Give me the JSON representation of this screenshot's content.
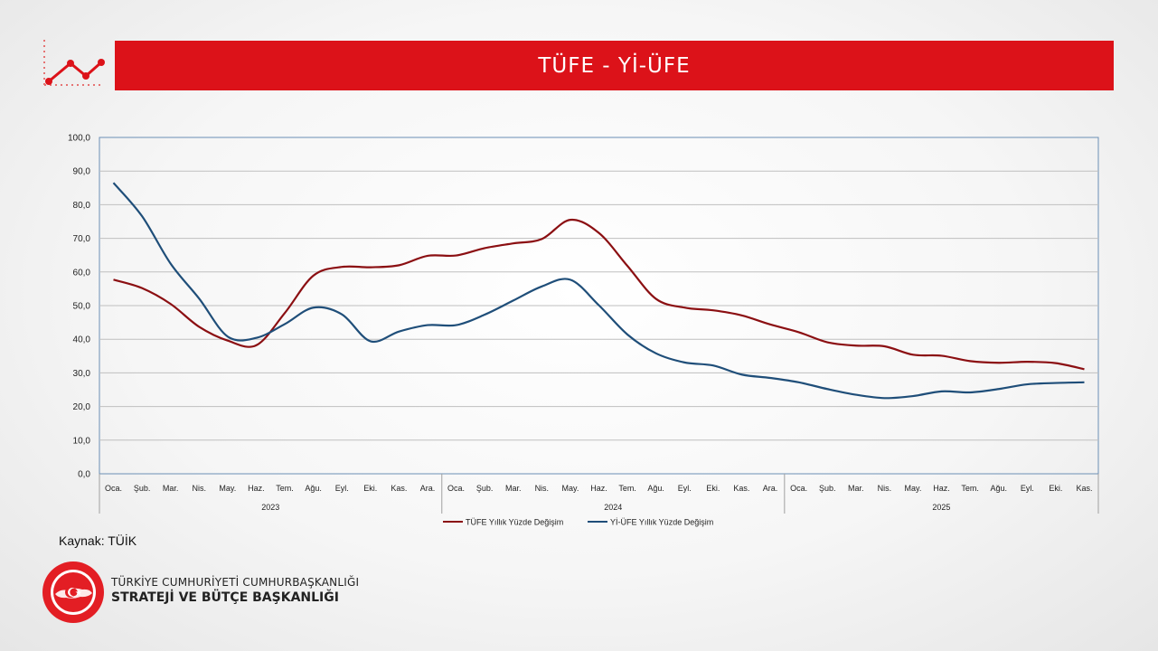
{
  "header": {
    "title": "TÜFE - Yİ-ÜFE"
  },
  "source": {
    "text": "Kaynak: TÜİK"
  },
  "org": {
    "line1": "TÜRKİYE CUMHURİYETİ CUMHURBAŞKANLIĞI",
    "line2": "STRATEJİ VE BÜTÇE BAŞKANLIĞI"
  },
  "colors": {
    "accent": "#dc1219",
    "tufe": "#8b0f12",
    "yiufe": "#1f4e79",
    "grid": "#bfbfbf"
  },
  "chart_data": {
    "type": "line",
    "title": "",
    "xlabel": "",
    "ylabel": "",
    "ylim": [
      0,
      100
    ],
    "yticks": [
      "0,0",
      "10,0",
      "20,0",
      "30,0",
      "40,0",
      "50,0",
      "60,0",
      "70,0",
      "80,0",
      "90,0",
      "100,0"
    ],
    "grid": true,
    "legend_position": "bottom",
    "categories": [
      "Oca.",
      "Şub.",
      "Mar.",
      "Nis.",
      "May.",
      "Haz.",
      "Tem.",
      "Ağu.",
      "Eyl.",
      "Eki.",
      "Kas.",
      "Ara.",
      "Oca.",
      "Şub.",
      "Mar.",
      "Nis.",
      "May.",
      "Haz.",
      "Tem.",
      "Ağu.",
      "Eyl.",
      "Eki.",
      "Kas.",
      "Ara.",
      "Oca.",
      "Şub.",
      "Mar.",
      "Nis.",
      "May.",
      "Haz.",
      "Tem.",
      "Ağu.",
      "Eyl.",
      "Eki.",
      "Kas."
    ],
    "years": [
      {
        "label": "2023",
        "count": 12
      },
      {
        "label": "2024",
        "count": 12
      },
      {
        "label": "2025",
        "count": 11
      }
    ],
    "series": [
      {
        "name": "TÜFE Yıllık Yüzde Değişim",
        "color": "#8b0f12",
        "values": [
          57.7,
          55.2,
          50.5,
          43.7,
          39.6,
          38.2,
          47.8,
          58.9,
          61.5,
          61.4,
          62.0,
          64.8,
          64.9,
          67.1,
          68.5,
          69.8,
          75.5,
          71.6,
          61.8,
          52.0,
          49.4,
          48.6,
          47.1,
          44.4,
          42.1,
          39.1,
          38.1,
          37.9,
          35.4,
          35.1,
          33.5,
          33.0,
          33.3,
          32.9,
          31.1
        ]
      },
      {
        "name": "Yİ-ÜFE Yıllık Yüzde Değişim",
        "color": "#1f4e79",
        "values": [
          86.5,
          76.6,
          62.5,
          52.1,
          40.8,
          40.4,
          44.5,
          49.4,
          47.4,
          39.4,
          42.3,
          44.2,
          44.2,
          47.3,
          51.5,
          55.7,
          57.7,
          50.1,
          41.4,
          35.8,
          33.1,
          32.2,
          29.5,
          28.5,
          27.2,
          25.2,
          23.5,
          22.5,
          23.1,
          24.5,
          24.2,
          25.2,
          26.6,
          27.0,
          27.2
        ]
      }
    ]
  }
}
